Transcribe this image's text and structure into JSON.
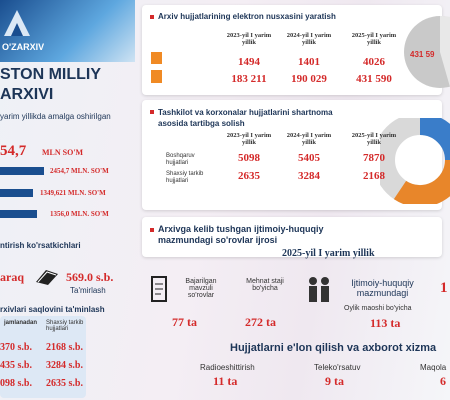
{
  "left": {
    "logo": "O'ZARXIV",
    "title_line1": "STON MILLIY",
    "title_line2": "ARXIVI",
    "subtitle": "yarim yillikda amalga oshirilgan",
    "total": {
      "value": "54,7",
      "unit": "MLN SO'M"
    },
    "bars": [
      {
        "value": "2454,7",
        "unit": "MLN. SO'M"
      },
      {
        "value": "1349,621",
        "unit": "MLN. SO'M"
      },
      {
        "value": "1356,0",
        "unit": "MLN. SO'M"
      }
    ],
    "repair": {
      "heading": "ntirish ko'rsatkichlari",
      "left_value": "araq",
      "value": "569.0 s.b.",
      "label": "Ta'mirlash"
    },
    "storage": {
      "heading": "rxivlari saqlovini ta'minlash",
      "columns": [
        "jamlanadan",
        "Shaxsiy tarkib hujjatlari"
      ],
      "rows": [
        [
          "370 s.b.",
          "2168 s.b."
        ],
        [
          "435 s.b.",
          "3284 s.b."
        ],
        [
          "098 s.b.",
          "2635 s.b."
        ]
      ]
    }
  },
  "digitization": {
    "title": "Arxiv hujjatlarining elektron nusxasini yaratish",
    "years": [
      "2023-yil I yarim yillik",
      "2024-yil I yarim yillik",
      "2025-yil I yarim yillik"
    ],
    "rows": [
      [
        "1494",
        "1401",
        "4026"
      ],
      [
        "183 211",
        "190 029",
        "431 590"
      ]
    ],
    "pie_label": "431 59"
  },
  "contracts": {
    "title": "Tashkilot va korxonalar hujjatlarini shartnoma asosida tartibga solish",
    "years": [
      "2023-yil I yarim yillik",
      "2024-yil I yarim yillik",
      "2025-yil I yarim yillik"
    ],
    "rows": [
      {
        "label": "Boshqaruv hujjatlari",
        "values": [
          "5098",
          "5405",
          "7870"
        ]
      },
      {
        "label": "Shaxsiy tarkib hujjatlari",
        "values": [
          "2635",
          "3284",
          "2168"
        ]
      }
    ]
  },
  "requests": {
    "title": "Arxivga kelib tushgan ijtimoiy-huquqiy mazmundagi so'rovlar ijrosi",
    "period": "2025-yil I yarim yillik",
    "items": [
      {
        "label": "Bajarilgan mavzuli so'rovlar",
        "value": "77 ta"
      },
      {
        "label": "Mehnat staji bo'yicha",
        "value": "272 ta"
      },
      {
        "label": "Ijtimoiy-huquqiy mazmundagi",
        "sublabel": "Oylik maoshi bo'yicha",
        "value": "113 ta"
      }
    ],
    "cut_value": "1"
  },
  "publication": {
    "title": "Hujjatlarni e'lon qilish va axborot xizma",
    "items": [
      {
        "label": "Radioeshittirish",
        "value": "11 ta"
      },
      {
        "label": "Teleko'rsatuv",
        "value": "9 ta"
      },
      {
        "label": "Maqola",
        "value": "6"
      }
    ]
  }
}
